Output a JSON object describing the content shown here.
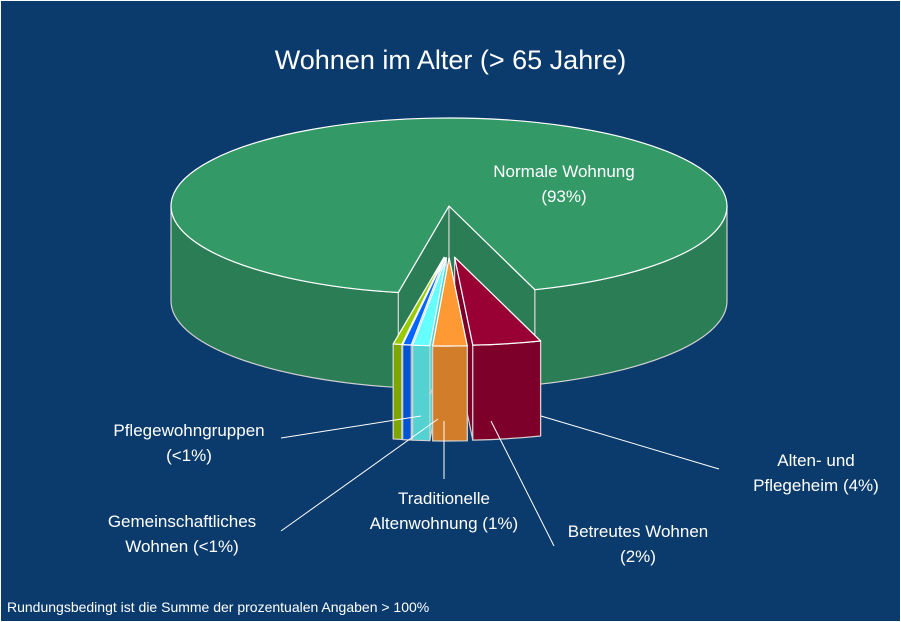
{
  "chart_data": {
    "type": "pie3d",
    "title": "Wohnen im Alter (> 65 Jahre)",
    "categories": [
      "Alten- und Pflegeheim",
      "Betreutes Wohnen",
      "Traditionelle Altenwohnung",
      "Gemeinschaftliches Wohnen",
      "Pflegewohngruppen",
      "Normale Wohnung"
    ],
    "values": [
      4,
      2,
      1,
      0.5,
      0.5,
      93
    ],
    "value_labels": [
      "(4%)",
      "(2%)",
      "(1%)",
      "(<1%)",
      "(<1%)",
      "(93%)"
    ],
    "colors": [
      "#990033",
      "#ff9933",
      "#66ffff",
      "#0066ff",
      "#99cc00",
      "#339966"
    ],
    "note": "Rundungsbedingt ist die Summe der prozentualen Angaben > 100%"
  }
}
